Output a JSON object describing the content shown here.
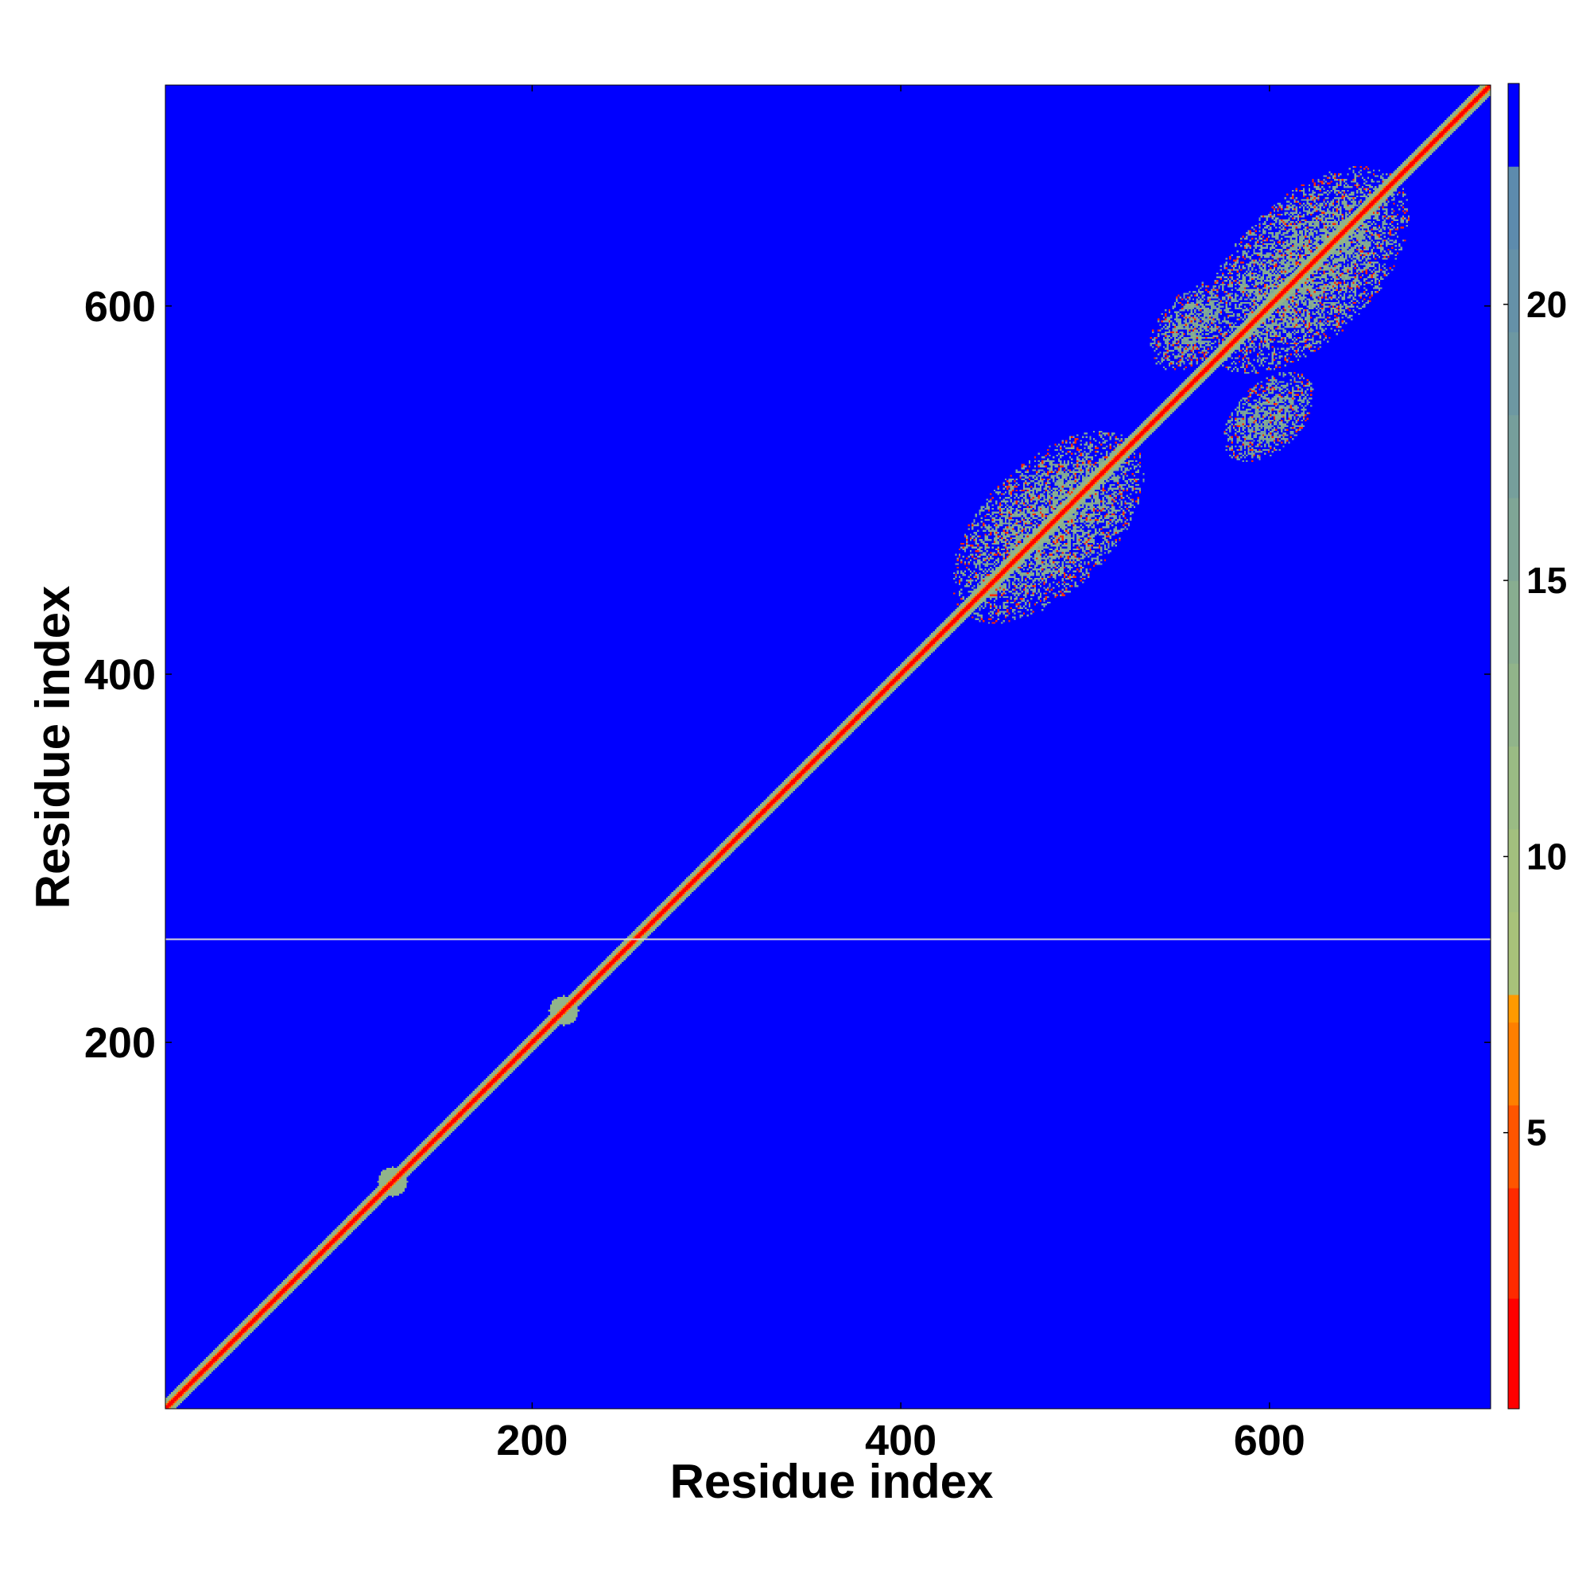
{
  "chart_data": {
    "type": "heatmap",
    "title": "",
    "xlabel": "Residue index",
    "ylabel": "Residue index",
    "xlim": [
      1,
      720
    ],
    "ylim": [
      1,
      720
    ],
    "x_ticks": [
      200,
      400,
      600
    ],
    "y_ticks": [
      200,
      400,
      600
    ],
    "grid": false,
    "reference_line_y": 256,
    "colorbar": {
      "range": [
        0,
        24
      ],
      "ticks": [
        5,
        10,
        15,
        20
      ],
      "levels": [
        {
          "upper": 2,
          "color": "#ff0000"
        },
        {
          "upper": 4,
          "color": "#ff2a00"
        },
        {
          "upper": 5.5,
          "color": "#ff5500"
        },
        {
          "upper": 7,
          "color": "#ff7f00"
        },
        {
          "upper": 7.5,
          "color": "#ff9a00"
        },
        {
          "upper": 9,
          "color": "#a8c27a"
        },
        {
          "upper": 10.5,
          "color": "#a2bf7e"
        },
        {
          "upper": 12,
          "color": "#9abb84"
        },
        {
          "upper": 13.5,
          "color": "#91b48a"
        },
        {
          "upper": 15,
          "color": "#88ad90"
        },
        {
          "upper": 16.5,
          "color": "#7fa696"
        },
        {
          "upper": 18,
          "color": "#769f9c"
        },
        {
          "upper": 19.5,
          "color": "#6d98a2"
        },
        {
          "upper": 21,
          "color": "#6591a8"
        },
        {
          "upper": 22.5,
          "color": "#5d8bad"
        },
        {
          "upper": 24,
          "color": "#0000ff"
        }
      ]
    },
    "background_value": 24,
    "diagonal_band": {
      "start": 1,
      "end": 720,
      "core_value": 1,
      "halo_value": 13,
      "halo_width": 5
    },
    "bulges": [
      {
        "center": 124,
        "radius": 8,
        "value": 13
      },
      {
        "center": 217,
        "radius": 8,
        "value": 13
      }
    ],
    "contact_regions": [
      {
        "name": "domain-a",
        "center": [
          480,
          480
        ],
        "span": 65,
        "width": 35,
        "value": 14
      },
      {
        "name": "domain-b",
        "center": [
          620,
          620
        ],
        "span": 70,
        "width": 38,
        "value": 14
      },
      {
        "name": "offdiag-upper",
        "center": [
          560,
          590
        ],
        "span": 30,
        "width": 18,
        "value": 15
      },
      {
        "name": "offdiag-lower",
        "center": [
          600,
          540
        ],
        "span": 30,
        "width": 18,
        "value": 15
      }
    ]
  }
}
